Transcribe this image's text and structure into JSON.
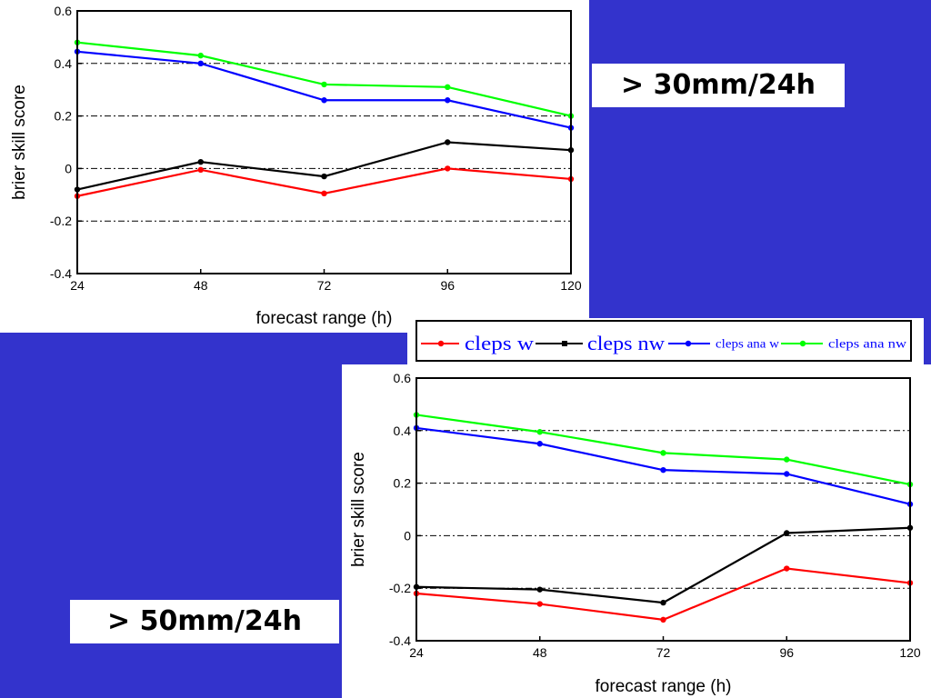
{
  "colors": {
    "background": "#3333cc",
    "cleps_w": "#ff0000",
    "cleps_nw": "#000000",
    "cleps_ana_w": "#0000ff",
    "cleps_ana_nw": "#00ff00",
    "legend_text": "#0000ff"
  },
  "legend": {
    "items": [
      {
        "label": "cleps w",
        "color": "#ff0000"
      },
      {
        "label": "cleps nw",
        "color": "#000000"
      },
      {
        "label": "cleps ana w",
        "color": "#0000ff"
      },
      {
        "label": "cleps ana nw",
        "color": "#00ff00"
      }
    ]
  },
  "threshold_labels": {
    "top": "> 30mm/24h",
    "bottom": "> 50mm/24h"
  },
  "chart_data": [
    {
      "type": "line",
      "threshold": "> 30mm/24h",
      "xlabel": "forecast range (h)",
      "ylabel": "brier skill score",
      "x": [
        24,
        48,
        72,
        96,
        120
      ],
      "x_ticks": [
        "24",
        "48",
        "72",
        "96",
        "120"
      ],
      "y_ticks": [
        "-0.4",
        "-0.2",
        "0",
        "0.2",
        "0.4",
        "0.6"
      ],
      "xlim": [
        24,
        120
      ],
      "ylim": [
        -0.4,
        0.6
      ],
      "grid": "dashed horizontal at 0.4, 0.2, 0, -0.2",
      "series": [
        {
          "name": "cleps w",
          "color": "#ff0000",
          "values": [
            -0.105,
            -0.005,
            -0.095,
            0.0,
            -0.04
          ]
        },
        {
          "name": "cleps nw",
          "color": "#000000",
          "values": [
            -0.08,
            0.025,
            -0.03,
            0.1,
            0.07
          ]
        },
        {
          "name": "cleps ana w",
          "color": "#0000ff",
          "values": [
            0.445,
            0.4,
            0.26,
            0.26,
            0.155
          ]
        },
        {
          "name": "cleps ana nw",
          "color": "#00ff00",
          "values": [
            0.48,
            0.43,
            0.32,
            0.31,
            0.2
          ]
        }
      ]
    },
    {
      "type": "line",
      "threshold": "> 50mm/24h",
      "xlabel": "forecast range (h)",
      "ylabel": "brier skill score",
      "x": [
        24,
        48,
        72,
        96,
        120
      ],
      "x_ticks": [
        "24",
        "48",
        "72",
        "96",
        "120"
      ],
      "y_ticks": [
        "-0.4",
        "-0.2",
        "0",
        "0.2",
        "0.4",
        "0.6"
      ],
      "xlim": [
        24,
        120
      ],
      "ylim": [
        -0.4,
        0.6
      ],
      "grid": "dashed horizontal at 0.4, 0.2, 0, -0.2",
      "series": [
        {
          "name": "cleps w",
          "color": "#ff0000",
          "values": [
            -0.22,
            -0.26,
            -0.32,
            -0.125,
            -0.18
          ]
        },
        {
          "name": "cleps nw",
          "color": "#000000",
          "values": [
            -0.195,
            -0.205,
            -0.255,
            0.01,
            0.03
          ]
        },
        {
          "name": "cleps ana w",
          "color": "#0000ff",
          "values": [
            0.41,
            0.35,
            0.25,
            0.235,
            0.12
          ]
        },
        {
          "name": "cleps ana nw",
          "color": "#00ff00",
          "values": [
            0.46,
            0.395,
            0.315,
            0.29,
            0.195
          ]
        }
      ]
    }
  ]
}
